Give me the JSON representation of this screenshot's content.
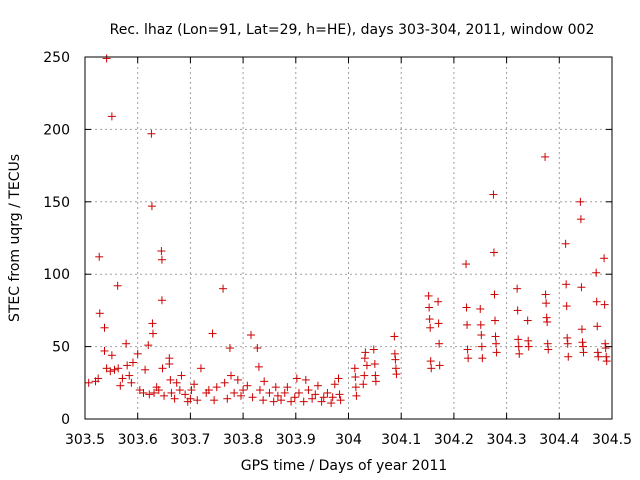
{
  "chart_data": {
    "type": "scatter",
    "title": "Rec. lhaz (Lon=91, Lat=29, h=HE), days 303-304, 2011, window 002",
    "xlabel": "GPS time / Days of year 2011",
    "ylabel": "STEC from uqrg / TECUs",
    "xlim": [
      303.5,
      304.5
    ],
    "ylim": [
      0,
      250
    ],
    "xticks": [
      303.5,
      303.6,
      303.7,
      303.8,
      303.9,
      304.0,
      304.1,
      304.2,
      304.3,
      304.4,
      304.5
    ],
    "xtick_labels": [
      "303.5",
      "303.6",
      "303.7",
      "303.8",
      "303.9",
      "304",
      "304.1",
      "304.2",
      "304.3",
      "304.4",
      "304.5"
    ],
    "yticks": [
      0,
      50,
      100,
      150,
      200,
      250
    ],
    "ytick_labels": [
      "0",
      "50",
      "100",
      "150",
      "200",
      "250"
    ],
    "grid": true,
    "marker": "+",
    "color": "#cc0000",
    "series": [
      {
        "name": "STEC",
        "points": [
          [
            303.507,
            25
          ],
          [
            303.52,
            26
          ],
          [
            303.525,
            28
          ],
          [
            303.527,
            112
          ],
          [
            303.528,
            73
          ],
          [
            303.537,
            63
          ],
          [
            303.537,
            47
          ],
          [
            303.541,
            249
          ],
          [
            303.541,
            35
          ],
          [
            303.548,
            33
          ],
          [
            303.551,
            44
          ],
          [
            303.551,
            209
          ],
          [
            303.556,
            34
          ],
          [
            303.562,
            92
          ],
          [
            303.563,
            35
          ],
          [
            303.567,
            23
          ],
          [
            303.571,
            28
          ],
          [
            303.578,
            52
          ],
          [
            303.58,
            37
          ],
          [
            303.584,
            30
          ],
          [
            303.588,
            25
          ],
          [
            303.591,
            39
          ],
          [
            303.6,
            45
          ],
          [
            303.604,
            20
          ],
          [
            303.611,
            18
          ],
          [
            303.614,
            34
          ],
          [
            303.62,
            51
          ],
          [
            303.622,
            17
          ],
          [
            303.626,
            197
          ],
          [
            303.627,
            147
          ],
          [
            303.628,
            66
          ],
          [
            303.629,
            59
          ],
          [
            303.631,
            18
          ],
          [
            303.636,
            22
          ],
          [
            303.64,
            20
          ],
          [
            303.645,
            116
          ],
          [
            303.646,
            110
          ],
          [
            303.646,
            82
          ],
          [
            303.647,
            35
          ],
          [
            303.65,
            16
          ],
          [
            303.66,
            42
          ],
          [
            303.66,
            38
          ],
          [
            303.662,
            27
          ],
          [
            303.664,
            18
          ],
          [
            303.67,
            14
          ],
          [
            303.674,
            25
          ],
          [
            303.68,
            20
          ],
          [
            303.683,
            30
          ],
          [
            303.69,
            17
          ],
          [
            303.695,
            12
          ],
          [
            303.7,
            14
          ],
          [
            303.702,
            20
          ],
          [
            303.707,
            24
          ],
          [
            303.713,
            13
          ],
          [
            303.72,
            35
          ],
          [
            303.73,
            18
          ],
          [
            303.735,
            20
          ],
          [
            303.742,
            59
          ],
          [
            303.745,
            13
          ],
          [
            303.75,
            22
          ],
          [
            303.762,
            90
          ],
          [
            303.765,
            25
          ],
          [
            303.77,
            14
          ],
          [
            303.775,
            49
          ],
          [
            303.777,
            30
          ],
          [
            303.783,
            18
          ],
          [
            303.79,
            27
          ],
          [
            303.796,
            16
          ],
          [
            303.8,
            20
          ],
          [
            303.808,
            23
          ],
          [
            303.815,
            58
          ],
          [
            303.818,
            15
          ],
          [
            303.827,
            49
          ],
          [
            303.83,
            36
          ],
          [
            303.832,
            20
          ],
          [
            303.838,
            13
          ],
          [
            303.84,
            26
          ],
          [
            303.85,
            18
          ],
          [
            303.858,
            12
          ],
          [
            303.862,
            22
          ],
          [
            303.866,
            16
          ],
          [
            303.872,
            13
          ],
          [
            303.879,
            18
          ],
          [
            303.884,
            22
          ],
          [
            303.891,
            12
          ],
          [
            303.898,
            15
          ],
          [
            303.902,
            28
          ],
          [
            303.906,
            18
          ],
          [
            303.915,
            12
          ],
          [
            303.919,
            27
          ],
          [
            303.924,
            20
          ],
          [
            303.931,
            14
          ],
          [
            303.937,
            17
          ],
          [
            303.942,
            23
          ],
          [
            303.949,
            12
          ],
          [
            303.953,
            15
          ],
          [
            303.96,
            18
          ],
          [
            303.967,
            11
          ],
          [
            303.97,
            15
          ],
          [
            303.974,
            24
          ],
          [
            303.981,
            28
          ],
          [
            303.983,
            17
          ],
          [
            303.985,
            13
          ],
          [
            304.012,
            35
          ],
          [
            304.013,
            29
          ],
          [
            304.014,
            22
          ],
          [
            304.015,
            16
          ],
          [
            304.028,
            24
          ],
          [
            304.03,
            30
          ],
          [
            304.031,
            42
          ],
          [
            304.032,
            46
          ],
          [
            304.035,
            37
          ],
          [
            304.048,
            48
          ],
          [
            304.05,
            38
          ],
          [
            304.051,
            30
          ],
          [
            304.052,
            26
          ],
          [
            304.087,
            57
          ],
          [
            304.088,
            45
          ],
          [
            304.089,
            41
          ],
          [
            304.09,
            35
          ],
          [
            304.091,
            31
          ],
          [
            304.152,
            85
          ],
          [
            304.153,
            77
          ],
          [
            304.154,
            69
          ],
          [
            304.155,
            63
          ],
          [
            304.156,
            40
          ],
          [
            304.157,
            35
          ],
          [
            304.17,
            81
          ],
          [
            304.171,
            66
          ],
          [
            304.172,
            52
          ],
          [
            304.173,
            37
          ],
          [
            304.223,
            107
          ],
          [
            304.224,
            77
          ],
          [
            304.225,
            65
          ],
          [
            304.226,
            48
          ],
          [
            304.227,
            42
          ],
          [
            304.25,
            76
          ],
          [
            304.251,
            65
          ],
          [
            304.252,
            58
          ],
          [
            304.253,
            50
          ],
          [
            304.254,
            42
          ],
          [
            304.275,
            155
          ],
          [
            304.276,
            115
          ],
          [
            304.277,
            86
          ],
          [
            304.278,
            68
          ],
          [
            304.279,
            57
          ],
          [
            304.28,
            52
          ],
          [
            304.281,
            46
          ],
          [
            304.32,
            90
          ],
          [
            304.321,
            75
          ],
          [
            304.322,
            55
          ],
          [
            304.323,
            50
          ],
          [
            304.324,
            45
          ],
          [
            304.34,
            68
          ],
          [
            304.341,
            54
          ],
          [
            304.342,
            50
          ],
          [
            304.373,
            181
          ],
          [
            304.374,
            86
          ],
          [
            304.375,
            80
          ],
          [
            304.376,
            70
          ],
          [
            304.377,
            67
          ],
          [
            304.378,
            52
          ],
          [
            304.379,
            48
          ],
          [
            304.412,
            121
          ],
          [
            304.413,
            93
          ],
          [
            304.414,
            78
          ],
          [
            304.415,
            56
          ],
          [
            304.416,
            52
          ],
          [
            304.417,
            43
          ],
          [
            304.44,
            150
          ],
          [
            304.441,
            138
          ],
          [
            304.442,
            91
          ],
          [
            304.443,
            62
          ],
          [
            304.444,
            53
          ],
          [
            304.445,
            50
          ],
          [
            304.446,
            46
          ],
          [
            304.47,
            101
          ],
          [
            304.471,
            81
          ],
          [
            304.472,
            64
          ],
          [
            304.473,
            46
          ],
          [
            304.474,
            43
          ],
          [
            304.485,
            111
          ],
          [
            304.486,
            79
          ],
          [
            304.487,
            52
          ],
          [
            304.488,
            49
          ],
          [
            304.489,
            43
          ],
          [
            304.49,
            40
          ]
        ]
      }
    ]
  }
}
